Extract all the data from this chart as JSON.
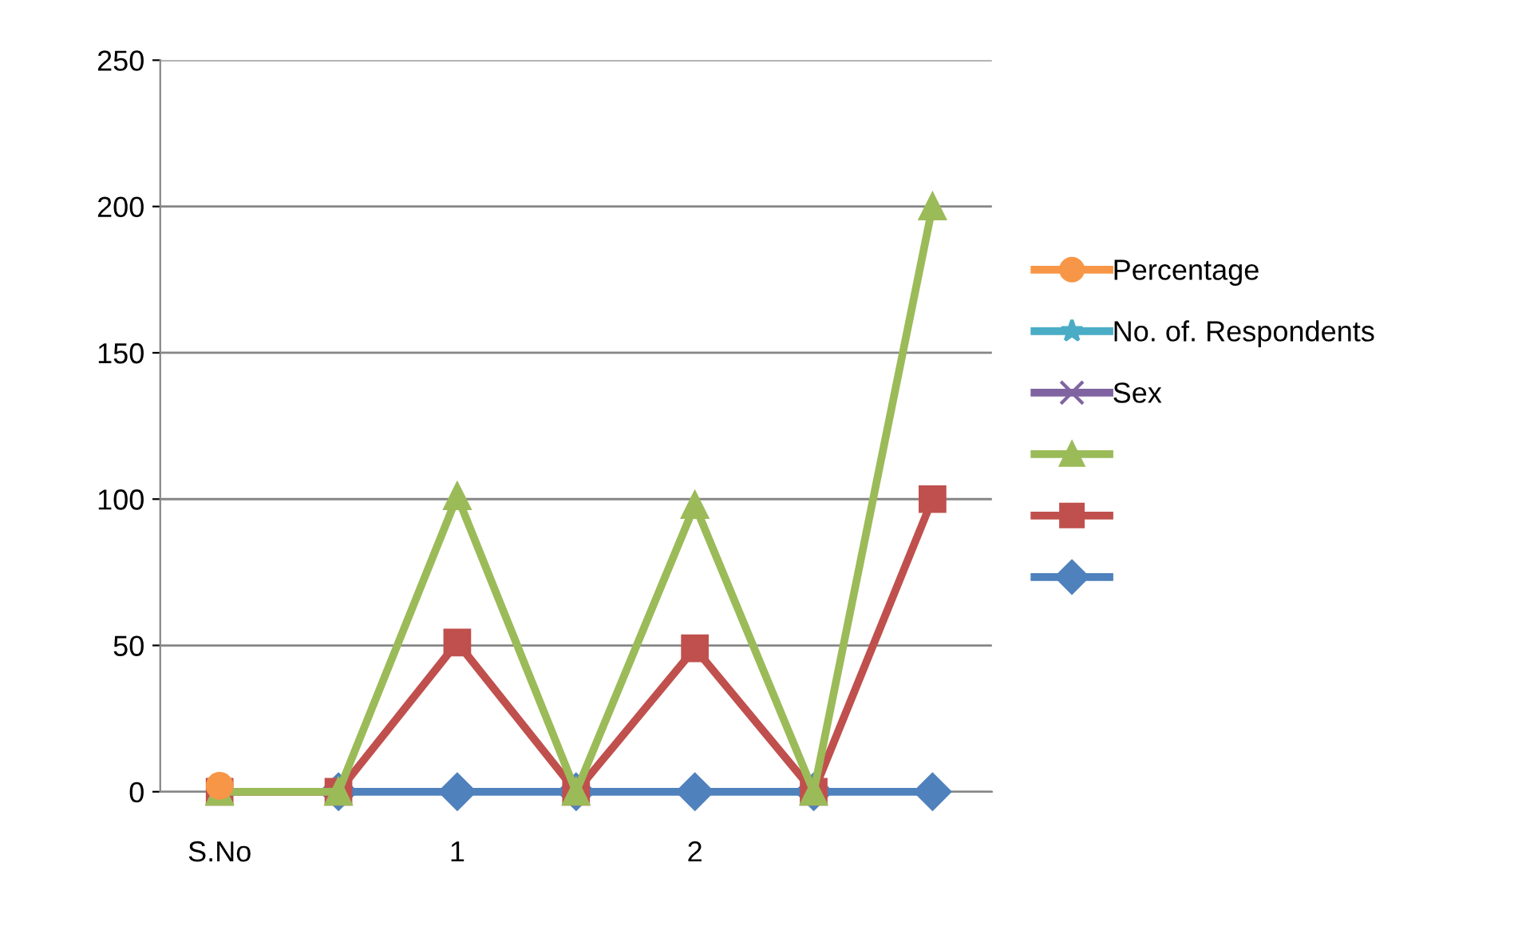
{
  "chart_data": {
    "type": "line",
    "categories": [
      "S.No",
      null,
      "1",
      null,
      "2",
      null,
      null
    ],
    "series": [
      {
        "name": "Percentage",
        "color": "#f79646",
        "marker": "circle",
        "values": [
          2,
          null,
          null,
          null,
          null,
          null,
          null
        ]
      },
      {
        "name": "No. of. Respondents",
        "color": "#4bacc6",
        "marker": "star",
        "values": [
          null,
          null,
          null,
          null,
          null,
          null,
          null
        ]
      },
      {
        "name": "Sex",
        "color": "#8064a2",
        "marker": "cross",
        "values": [
          null,
          null,
          null,
          null,
          null,
          null,
          null
        ]
      },
      {
        "color": "#9bbb59",
        "marker": "triangle",
        "values": [
          0,
          0,
          101,
          0,
          98,
          0,
          200
        ]
      },
      {
        "color": "#c0504d",
        "marker": "square",
        "values": [
          0,
          0,
          51,
          0,
          49,
          0,
          100
        ]
      },
      {
        "color": "#4f81bd",
        "marker": "diamond",
        "values": [
          null,
          0,
          0,
          0,
          0,
          0,
          0
        ]
      }
    ],
    "ylim": [
      0,
      250
    ],
    "yticks": [
      0,
      50,
      100,
      150,
      200,
      250
    ],
    "grid": "y",
    "legend": "right"
  }
}
